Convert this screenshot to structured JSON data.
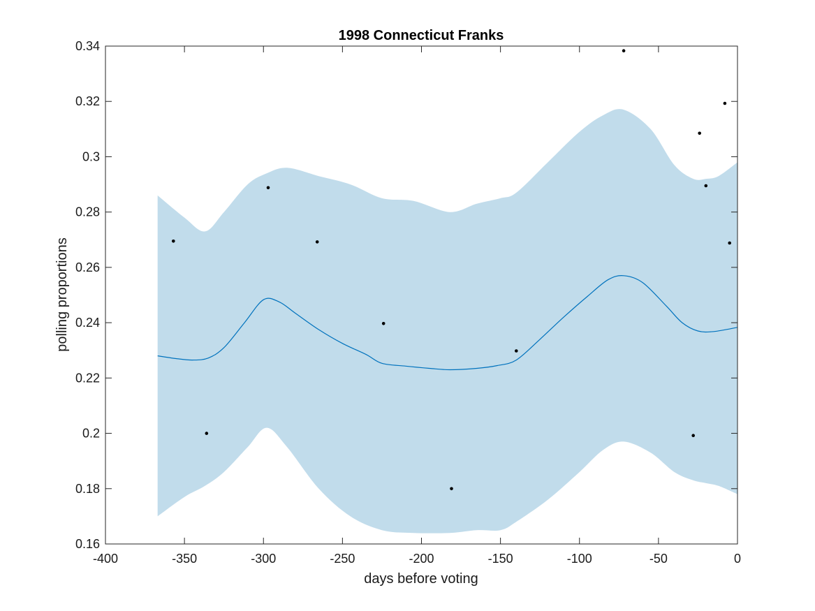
{
  "chart_data": {
    "type": "line",
    "title": "1998 Connecticut Franks",
    "xlabel": "days before voting",
    "ylabel": "polling proportions",
    "xlim": [
      -400,
      0
    ],
    "ylim": [
      0.16,
      0.34
    ],
    "xticks": [
      -400,
      -350,
      -300,
      -250,
      -200,
      -150,
      -100,
      -50,
      0
    ],
    "xtick_labels": [
      "-400",
      "-350",
      "-300",
      "-250",
      "-200",
      "-150",
      "-100",
      "-50",
      "0"
    ],
    "yticks": [
      0.16,
      0.18,
      0.2,
      0.22,
      0.24,
      0.26,
      0.28,
      0.3,
      0.32,
      0.34
    ],
    "ytick_labels": [
      "0.16",
      "0.18",
      "0.2",
      "0.22",
      "0.24",
      "0.26",
      "0.28",
      "0.3",
      "0.32",
      "0.34"
    ],
    "grid": false,
    "colors": {
      "band": "#c1dceb",
      "line": "#0072bd",
      "points": "#000000",
      "axes": "#262626"
    },
    "band": {
      "x": [
        -367,
        -350,
        -337,
        -325,
        -310,
        -298,
        -285,
        -265,
        -245,
        -225,
        -205,
        -182,
        -165,
        -150,
        -140,
        -120,
        -100,
        -85,
        -72,
        -55,
        -40,
        -28,
        -20,
        -12,
        0
      ],
      "upper": [
        0.286,
        0.278,
        0.273,
        0.28,
        0.29,
        0.294,
        0.296,
        0.293,
        0.29,
        0.285,
        0.284,
        0.28,
        0.283,
        0.285,
        0.287,
        0.298,
        0.309,
        0.315,
        0.317,
        0.31,
        0.297,
        0.292,
        0.292,
        0.293,
        0.298
      ],
      "lower": [
        0.17,
        0.177,
        0.181,
        0.186,
        0.195,
        0.202,
        0.195,
        0.18,
        0.17,
        0.165,
        0.164,
        0.164,
        0.165,
        0.165,
        0.168,
        0.176,
        0.186,
        0.194,
        0.197,
        0.193,
        0.186,
        0.183,
        0.182,
        0.181,
        0.178
      ]
    },
    "series": [
      {
        "x": [
          -367,
          -355,
          -345,
          -335,
          -325,
          -312,
          -300,
          -290,
          -280,
          -265,
          -250,
          -235,
          -225,
          -210,
          -195,
          -182,
          -165,
          -152,
          -140,
          -125,
          -110,
          -95,
          -82,
          -72,
          -60,
          -45,
          -35,
          -25,
          -15,
          0
        ],
        "y": [
          0.228,
          0.227,
          0.2265,
          0.2272,
          0.231,
          0.24,
          0.2483,
          0.2475,
          0.2435,
          0.2375,
          0.2325,
          0.2285,
          0.2253,
          0.2243,
          0.2235,
          0.223,
          0.2235,
          0.2245,
          0.2265,
          0.234,
          0.242,
          0.2495,
          0.2555,
          0.257,
          0.2545,
          0.246,
          0.24,
          0.237,
          0.2368,
          0.2383
        ]
      }
    ],
    "points": {
      "x": [
        -357,
        -336,
        -297,
        -266,
        -224,
        -181,
        -140,
        -72,
        -28,
        -24,
        -20,
        -8,
        -5
      ],
      "y": [
        0.2695,
        0.2,
        0.2888,
        0.2692,
        0.2397,
        0.18,
        0.2298,
        0.3383,
        0.1992,
        0.3085,
        0.2895,
        0.3193,
        0.2688
      ]
    }
  }
}
